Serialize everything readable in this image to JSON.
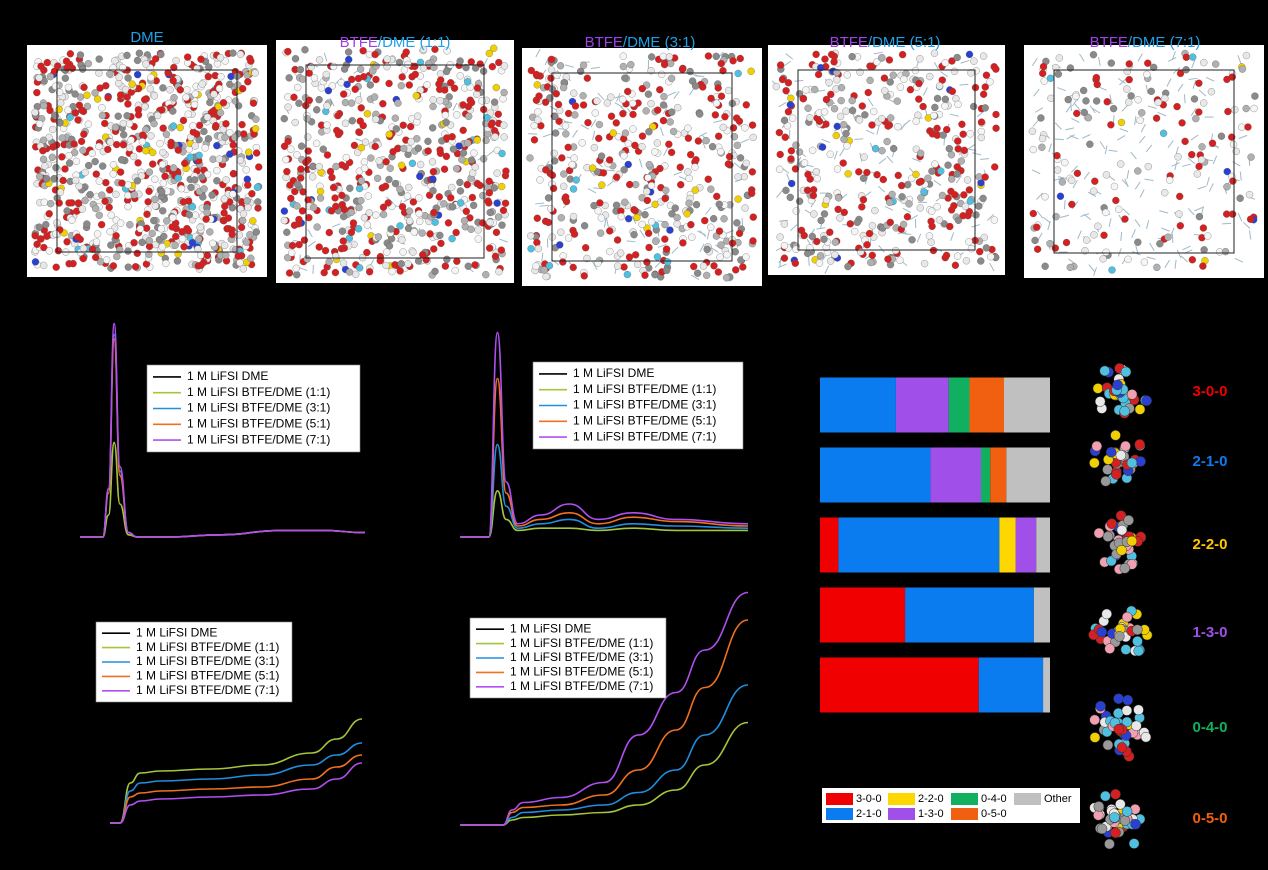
{
  "snapshots": [
    {
      "title": [
        {
          "text": "DME",
          "color": "#1ea0e6"
        }
      ]
    },
    {
      "title": [
        {
          "text": "BTFE",
          "color": "#a040e8"
        },
        {
          "text": "/DME (1:1)",
          "color": "#1ea0e6"
        }
      ]
    },
    {
      "title": [
        {
          "text": "BTFE",
          "color": "#a040e8"
        },
        {
          "text": "/DME (3:1)",
          "color": "#1ea0e6"
        }
      ]
    },
    {
      "title": [
        {
          "text": "BTFE",
          "color": "#a040e8"
        },
        {
          "text": "/DME (5:1)",
          "color": "#1ea0e6"
        }
      ]
    },
    {
      "title": [
        {
          "text": "BTFE",
          "color": "#a040e8"
        },
        {
          "text": "/DME (7:1)",
          "color": "#1ea0e6"
        }
      ]
    }
  ],
  "chart_data": [
    {
      "type": "line",
      "xlim": [
        0,
        100
      ],
      "ylim": [
        0,
        100
      ],
      "x": [
        0,
        8,
        10,
        12,
        14,
        17,
        20,
        30,
        50,
        70,
        85,
        100
      ],
      "series": [
        {
          "name": "1 M LiFSI DME",
          "color": "#000000",
          "values": [
            0,
            0,
            20,
            90,
            30,
            2,
            0,
            0,
            1,
            3,
            3,
            2
          ]
        },
        {
          "name": "1 M LiFSI BTFE/DME (1:1)",
          "color": "#a5c63b",
          "values": [
            0,
            0,
            10,
            43,
            15,
            1,
            0,
            0,
            1,
            3,
            3,
            2
          ]
        },
        {
          "name": "1 M LiFSI BTFE/DME (3:1)",
          "color": "#1f8fe0",
          "values": [
            0,
            0,
            20,
            92,
            30,
            2,
            0,
            0,
            1,
            3,
            3,
            2
          ]
        },
        {
          "name": "1 M LiFSI BTFE/DME (5:1)",
          "color": "#f07020",
          "values": [
            0,
            0,
            20,
            90,
            28,
            2,
            0,
            0,
            1,
            3,
            3,
            2
          ]
        },
        {
          "name": "1 M LiFSI BTFE/DME (7:1)",
          "color": "#b050f0",
          "values": [
            0,
            0,
            22,
            97,
            32,
            2,
            0,
            0,
            1,
            3,
            3,
            2
          ]
        }
      ]
    },
    {
      "type": "line",
      "xlim": [
        0,
        100
      ],
      "ylim": [
        0,
        100
      ],
      "x": [
        0,
        10,
        13,
        16,
        20,
        28,
        38,
        48,
        60,
        75,
        100
      ],
      "series": [
        {
          "name": "1 M LiFSI DME",
          "color": "#000000",
          "values": [
            0,
            0,
            20,
            8,
            3,
            4,
            4,
            3,
            4,
            3,
            3
          ]
        },
        {
          "name": "1 M LiFSI BTFE/DME (1:1)",
          "color": "#a5c63b",
          "values": [
            0,
            0,
            21,
            8,
            3,
            4,
            4,
            3,
            4,
            3,
            3
          ]
        },
        {
          "name": "1 M LiFSI BTFE/DME (3:1)",
          "color": "#1f8fe0",
          "values": [
            0,
            0,
            42,
            14,
            4,
            6,
            8,
            4,
            6,
            5,
            4
          ]
        },
        {
          "name": "1 M LiFSI BTFE/DME (5:1)",
          "color": "#f07020",
          "values": [
            0,
            0,
            72,
            20,
            5,
            8,
            11,
            6,
            9,
            7,
            5
          ]
        },
        {
          "name": "1 M LiFSI BTFE/DME (7:1)",
          "color": "#b050f0",
          "values": [
            0,
            0,
            93,
            25,
            6,
            10,
            15,
            8,
            11,
            8,
            6
          ]
        }
      ]
    },
    {
      "type": "line",
      "xlim": [
        0,
        100
      ],
      "ylim": [
        0,
        100
      ],
      "x": [
        0,
        4,
        8,
        12,
        20,
        40,
        60,
        80,
        90,
        100
      ],
      "series": [
        {
          "name": "1 M LiFSI DME",
          "color": "#000000",
          "values": [
            0,
            0,
            15,
            18,
            19,
            20,
            22,
            26,
            31,
            38
          ]
        },
        {
          "name": "1 M LiFSI BTFE/DME (1:1)",
          "color": "#a5c63b",
          "values": [
            0,
            0,
            20,
            25,
            26,
            27,
            29,
            35,
            42,
            52
          ]
        },
        {
          "name": "1 M LiFSI BTFE/DME (3:1)",
          "color": "#1f8fe0",
          "values": [
            0,
            0,
            16,
            20,
            21,
            22,
            24,
            29,
            34,
            40
          ]
        },
        {
          "name": "1 M LiFSI BTFE/DME (5:1)",
          "color": "#f07020",
          "values": [
            0,
            0,
            13,
            15,
            16,
            17,
            18,
            22,
            28,
            34
          ]
        },
        {
          "name": "1 M LiFSI BTFE/DME (7:1)",
          "color": "#b050f0",
          "values": [
            0,
            0,
            9,
            11,
            12,
            13,
            14,
            17,
            22,
            30
          ]
        }
      ]
    },
    {
      "type": "line",
      "xlim": [
        0,
        100
      ],
      "ylim": [
        0,
        100
      ],
      "x": [
        0,
        15,
        18,
        22,
        35,
        50,
        62,
        75,
        85,
        100
      ],
      "series": [
        {
          "name": "1 M LiFSI DME",
          "color": "#000000",
          "values": [
            0,
            0,
            2,
            3,
            4,
            5,
            7,
            12,
            20,
            35
          ]
        },
        {
          "name": "1 M LiFSI BTFE/DME (1:1)",
          "color": "#a5c63b",
          "values": [
            0,
            0,
            2,
            3,
            4,
            5,
            8,
            14,
            24,
            41
          ]
        },
        {
          "name": "1 M LiFSI BTFE/DME (3:1)",
          "color": "#1f8fe0",
          "values": [
            0,
            0,
            3,
            5,
            6,
            8,
            13,
            22,
            36,
            56
          ]
        },
        {
          "name": "1 M LiFSI BTFE/DME (5:1)",
          "color": "#f07020",
          "values": [
            0,
            0,
            5,
            7,
            8,
            12,
            22,
            38,
            55,
            82
          ]
        },
        {
          "name": "1 M LiFSI BTFE/DME (7:1)",
          "color": "#b050f0",
          "values": [
            0,
            0,
            6,
            9,
            11,
            17,
            36,
            53,
            70,
            93
          ]
        }
      ]
    },
    {
      "type": "stacked-barh",
      "xlim": [
        0,
        100
      ],
      "categories": [
        null,
        null,
        null,
        null,
        null
      ],
      "series": [
        {
          "name": "3-0-0",
          "color": "#f00000",
          "values": [
            0,
            0,
            8,
            37,
            69
          ]
        },
        {
          "name": "2-1-0",
          "color": "#0a7cf0",
          "values": [
            33,
            48,
            70,
            56,
            28
          ]
        },
        {
          "name": "2-2-0",
          "color": "#ffd700",
          "values": [
            0,
            0,
            7,
            0,
            0
          ]
        },
        {
          "name": "1-3-0",
          "color": "#a050e8",
          "values": [
            23,
            22,
            9,
            0,
            0
          ]
        },
        {
          "name": "0-4-0",
          "color": "#10b060",
          "values": [
            9,
            4,
            0,
            0,
            0
          ]
        },
        {
          "name": "0-5-0",
          "color": "#f06010",
          "values": [
            15,
            7,
            0,
            0,
            0
          ]
        },
        {
          "name": "Other",
          "color": "#c0c0c0",
          "values": [
            20,
            19,
            6,
            7,
            3
          ]
        }
      ]
    }
  ],
  "clusters": [
    {
      "label": "3-0-0",
      "color": "#f00000"
    },
    {
      "label": "2-1-0",
      "color": "#0a7cf0"
    },
    {
      "label": "2-2-0",
      "color": "#ffc800"
    },
    {
      "label": "1-3-0",
      "color": "#a050e8"
    },
    {
      "label": "0-4-0",
      "color": "#10b060"
    },
    {
      "label": "0-5-0",
      "color": "#f06010"
    }
  ]
}
